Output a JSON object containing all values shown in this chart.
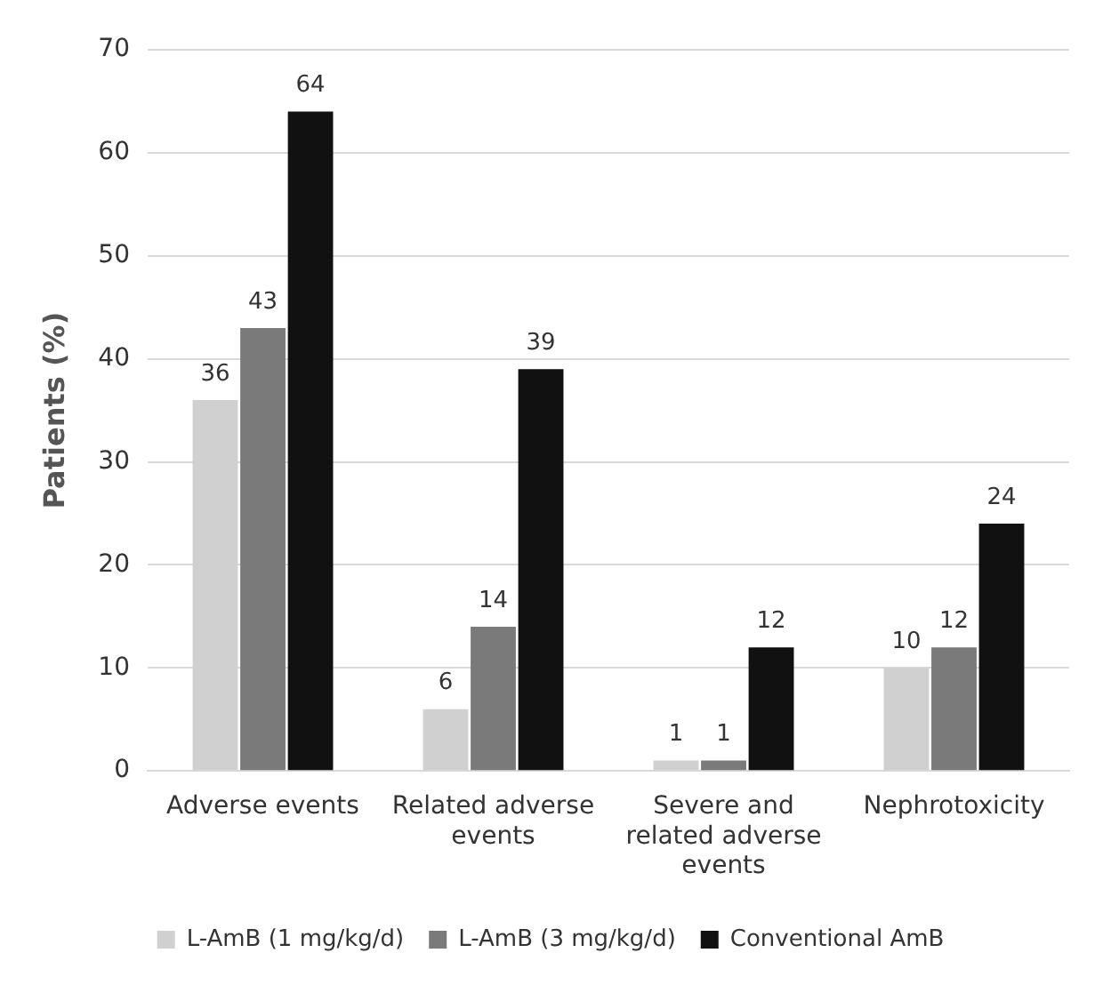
{
  "chart_data": {
    "type": "bar",
    "ylabel": "Patients (%)",
    "categories": [
      "Adverse events",
      "Related adverse events",
      "Severe and related adverse events",
      "Nephrotoxicity"
    ],
    "series": [
      {
        "name": "L-AmB (1 mg/kg/d)",
        "color": "#d0d0d0",
        "values": [
          36,
          6,
          1,
          10
        ]
      },
      {
        "name": "L-AmB (3 mg/kg/d)",
        "color": "#7a7a7a",
        "values": [
          43,
          14,
          1,
          12
        ]
      },
      {
        "name": "Conventional AmB",
        "color": "#111111",
        "values": [
          64,
          39,
          12,
          24
        ]
      }
    ],
    "ylim": [
      0,
      70
    ],
    "yticks": [
      0,
      10,
      20,
      30,
      40,
      50,
      60,
      70
    ],
    "grid": "y",
    "legend": "bottom",
    "data_labels": true
  }
}
